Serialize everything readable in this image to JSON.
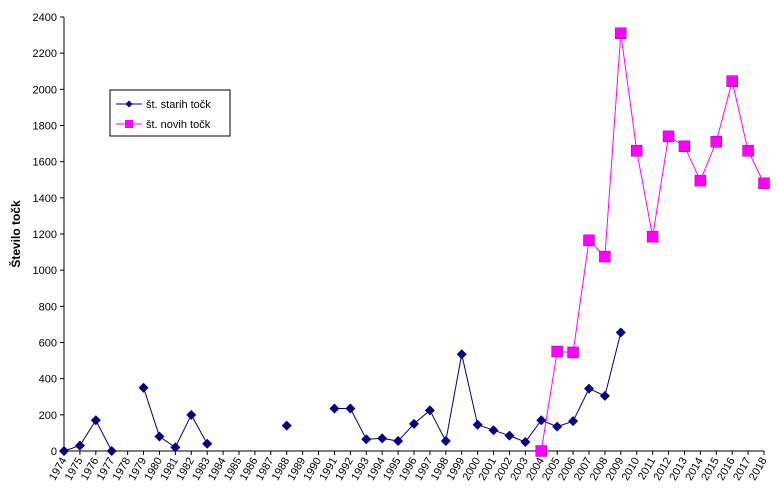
{
  "chart_data": {
    "type": "line",
    "title": "",
    "xlabel": "",
    "ylabel": "Število točk",
    "ylim": [
      0,
      2400
    ],
    "yticks": [
      0,
      200,
      400,
      600,
      800,
      1000,
      1200,
      1400,
      1600,
      1800,
      2000,
      2200,
      2400
    ],
    "categories": [
      "1974",
      "1975",
      "1976",
      "1977",
      "1978",
      "1979",
      "1980",
      "1981",
      "1982",
      "1983",
      "1984",
      "1985",
      "1986",
      "1987",
      "1988",
      "1989",
      "1990",
      "1991",
      "1992",
      "1993",
      "1994",
      "1995",
      "1996",
      "1997",
      "1998",
      "1999",
      "2000",
      "2001",
      "2002",
      "2003",
      "2004",
      "2005",
      "2006",
      "2007",
      "2008",
      "2009",
      "2010",
      "2011",
      "2012",
      "2013",
      "2014",
      "2015",
      "2016",
      "2017",
      "2018"
    ],
    "grid": false,
    "legend_position": "upper-left",
    "series": [
      {
        "name": "št. starih točk",
        "color": "#000080",
        "marker": "diamond",
        "values": [
          0,
          30,
          170,
          0,
          null,
          350,
          80,
          20,
          200,
          40,
          null,
          null,
          null,
          null,
          140,
          null,
          null,
          235,
          235,
          65,
          70,
          55,
          150,
          225,
          55,
          535,
          145,
          115,
          85,
          50,
          170,
          135,
          165,
          345,
          305,
          655,
          null,
          null,
          null,
          null,
          null,
          null,
          null,
          null,
          null
        ]
      },
      {
        "name": "št. novih točk",
        "color": "#FF00FF",
        "marker": "square",
        "values": [
          null,
          null,
          null,
          null,
          null,
          null,
          null,
          null,
          null,
          null,
          null,
          null,
          null,
          null,
          null,
          null,
          null,
          null,
          null,
          null,
          null,
          null,
          null,
          null,
          null,
          null,
          null,
          null,
          null,
          null,
          0,
          550,
          545,
          1165,
          1075,
          2310,
          1660,
          1185,
          1740,
          1685,
          1495,
          1710,
          2045,
          1660,
          1480
        ]
      }
    ]
  }
}
